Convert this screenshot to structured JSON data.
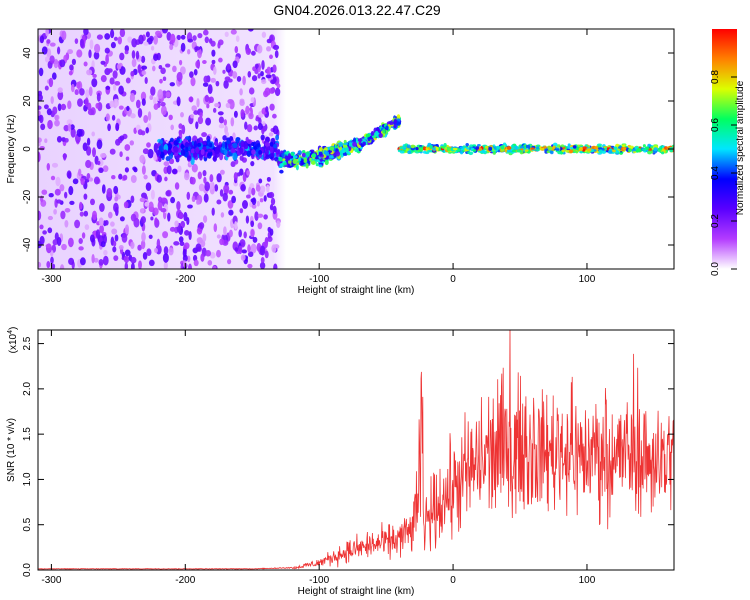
{
  "figure": {
    "title": "GN04.2026.013.22.47.C29"
  },
  "chart_data": [
    {
      "type": "heatmap",
      "xlabel": "Height of straight line (km)",
      "ylabel": "Frequency (Hz)",
      "xlim": [
        -310,
        165
      ],
      "ylim": [
        -50,
        50
      ],
      "xticks": [
        -300,
        -200,
        -100,
        0,
        100
      ],
      "yticks": [
        -40,
        -20,
        0,
        20,
        40
      ],
      "colorbar": {
        "label": "Normalized spectral amplitude",
        "range": [
          0.0,
          1.0
        ],
        "ticks": [
          "0.0",
          "0.2",
          "0.4",
          "0.6",
          "0.8"
        ],
        "colormap": [
          "#ffffff",
          "#b43cff",
          "#5a00ff",
          "#0000ff",
          "#00e6ff",
          "#00ff60",
          "#dcff00",
          "#ff8000",
          "#ff0000"
        ]
      },
      "features": [
        {
          "x_range": [
            -310,
            -130
          ],
          "description_values": {
            "freq_range": [
              -50,
              50
            ],
            "amplitude": 0.15
          }
        },
        {
          "x_range": [
            -220,
            -130
          ],
          "description_values": {
            "center_freq": 0,
            "amplitude": 0.3
          }
        },
        {
          "x_range": [
            -130,
            -40
          ],
          "description_values": {
            "center_freq_start": -5,
            "center_freq_end": 12,
            "amplitude": 0.55
          }
        },
        {
          "x_range": [
            -40,
            165
          ],
          "description_values": {
            "center_freq": 0,
            "amplitude": 0.85
          }
        }
      ]
    },
    {
      "type": "line",
      "series": [
        {
          "color": "#ee3333",
          "x": [
            -310,
            -250,
            -200,
            -150,
            -120,
            -100,
            -80,
            -60,
            -50,
            -40,
            -30,
            -25,
            -22,
            -20,
            -10,
            0,
            10,
            20,
            30,
            40,
            50,
            60,
            70,
            80,
            90,
            100,
            110,
            120,
            130,
            140,
            150,
            160,
            165
          ],
          "y": [
            0.01,
            0.01,
            0.01,
            0.01,
            0.02,
            0.08,
            0.2,
            0.28,
            0.3,
            0.35,
            0.45,
            0.9,
            0.3,
            0.55,
            0.75,
            0.9,
            1.05,
            1.2,
            1.3,
            1.35,
            1.35,
            1.3,
            1.3,
            1.35,
            1.3,
            1.25,
            1.3,
            1.25,
            1.3,
            1.25,
            1.2,
            1.25,
            1.2
          ]
        }
      ],
      "xlabel": "Height of straight line (km)",
      "ylabel": "SNR (10 * v/v)",
      "yscale_label": "(x10",
      "yscale_exp": "4",
      "yscale_close": ")",
      "xlim": [
        -310,
        165
      ],
      "ylim": [
        0,
        2.65
      ],
      "xticks": [
        -300,
        -200,
        -100,
        0,
        100
      ],
      "yticks": [
        "0.0",
        "0.5",
        "1.0",
        "1.5",
        "2.0",
        "2.5"
      ]
    }
  ]
}
